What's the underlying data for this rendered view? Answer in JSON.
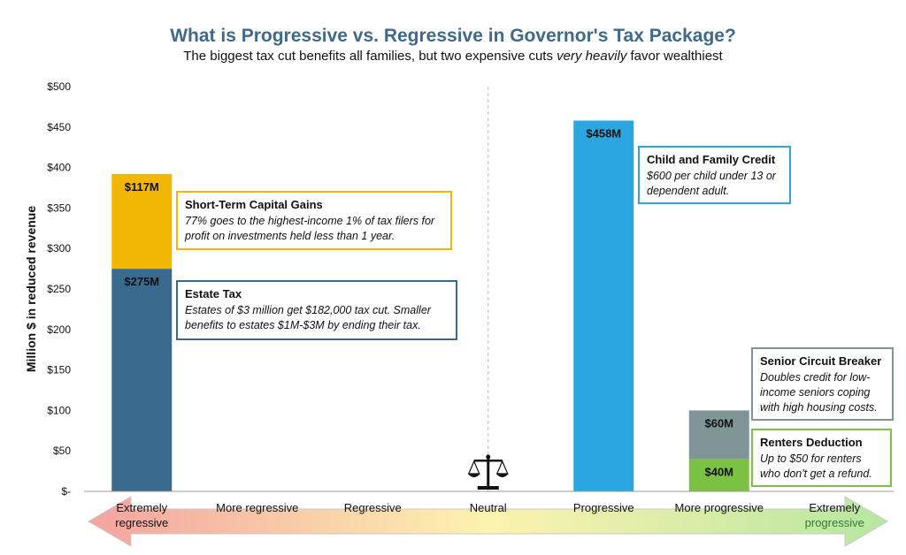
{
  "title": "What is Progressive vs. Regressive in Governor's Tax Package?",
  "subtitle": {
    "part1": "The biggest tax cut benefits all families, but two expensive cuts ",
    "emphasis": "very heavily",
    "part2": " favor wealthiest"
  },
  "chart_data": {
    "type": "bar",
    "stacked": true,
    "title": "What is Progressive vs. Regressive in Governor's Tax Package?",
    "ylabel": "Million $ in reduced revenue",
    "ylim": [
      0,
      500
    ],
    "yticks": [
      0,
      50,
      100,
      150,
      200,
      250,
      300,
      350,
      400,
      450,
      500
    ],
    "ytick_labels": [
      "$-",
      "$50",
      "$100",
      "$150",
      "$200",
      "$250",
      "$300",
      "$350",
      "$400",
      "$450",
      "$500"
    ],
    "categories": [
      "Extremely regressive",
      "More regressive",
      "Regressive",
      "Neutral",
      "Progressive",
      "More progressive",
      "Extremely progressive"
    ],
    "category_labels": [
      [
        "Extremely",
        "regressive"
      ],
      [
        "More regressive"
      ],
      [
        "Regressive"
      ],
      [
        "Neutral"
      ],
      [
        "Progressive"
      ],
      [
        "More progressive"
      ],
      [
        "Extremely",
        "progressive"
      ]
    ],
    "grid": false,
    "series": [
      {
        "name": "Estate Tax",
        "color": "#3b6a8f",
        "values": [
          275,
          0,
          0,
          0,
          0,
          0,
          0
        ],
        "labels": [
          "$275M",
          "",
          "",
          "",
          "",
          "",
          ""
        ]
      },
      {
        "name": "Short-Term Capital Gains",
        "color": "#f2b705",
        "values": [
          117,
          0,
          0,
          0,
          0,
          0,
          0
        ],
        "labels": [
          "$117M",
          "",
          "",
          "",
          "",
          "",
          ""
        ]
      },
      {
        "name": "Child and Family Credit",
        "color": "#2ba6e0",
        "values": [
          0,
          0,
          0,
          0,
          458,
          0,
          0
        ],
        "labels": [
          "",
          "",
          "",
          "",
          "$458M",
          "",
          ""
        ]
      },
      {
        "name": "Renters Deduction",
        "color": "#7cc242",
        "values": [
          0,
          0,
          0,
          0,
          0,
          40,
          0
        ],
        "labels": [
          "",
          "",
          "",
          "",
          "",
          "$40M",
          ""
        ]
      },
      {
        "name": "Senior Circuit Breaker",
        "color": "#7f9596",
        "values": [
          0,
          0,
          0,
          0,
          0,
          60,
          0
        ],
        "labels": [
          "",
          "",
          "",
          "",
          "",
          "$60M",
          ""
        ]
      }
    ],
    "annotations": [
      {
        "heading": "Short-Term Capital Gains",
        "body": "77% goes to the highest-income 1% of tax filers for profit on investments held less than 1 year.",
        "border": "#f2b705"
      },
      {
        "heading": "Estate Tax",
        "body": "Estates of $3 million get  $182,000 tax cut. Smaller benefits to estates $1M-$3M by ending their tax.",
        "border": "#3b6a8f"
      },
      {
        "heading": "Child and Family Credit",
        "body": "$600 per child under 13 or dependent adult.",
        "border": "#2ba6e0"
      },
      {
        "heading": "Senior Circuit Breaker",
        "body": "Doubles credit for low-income seniors coping with high housing costs.",
        "border": "#7f9596"
      },
      {
        "heading": "Renters Deduction",
        "body": "Up to $50 for renters who don't get a refund.",
        "border": "#7cc242"
      }
    ],
    "neutral_icon": "scales-of-justice-icon",
    "scale_arrow": {
      "left_color": "#f4a3a0",
      "mid_color": "#fdf3b0",
      "right_color": "#b6e7a0"
    }
  }
}
